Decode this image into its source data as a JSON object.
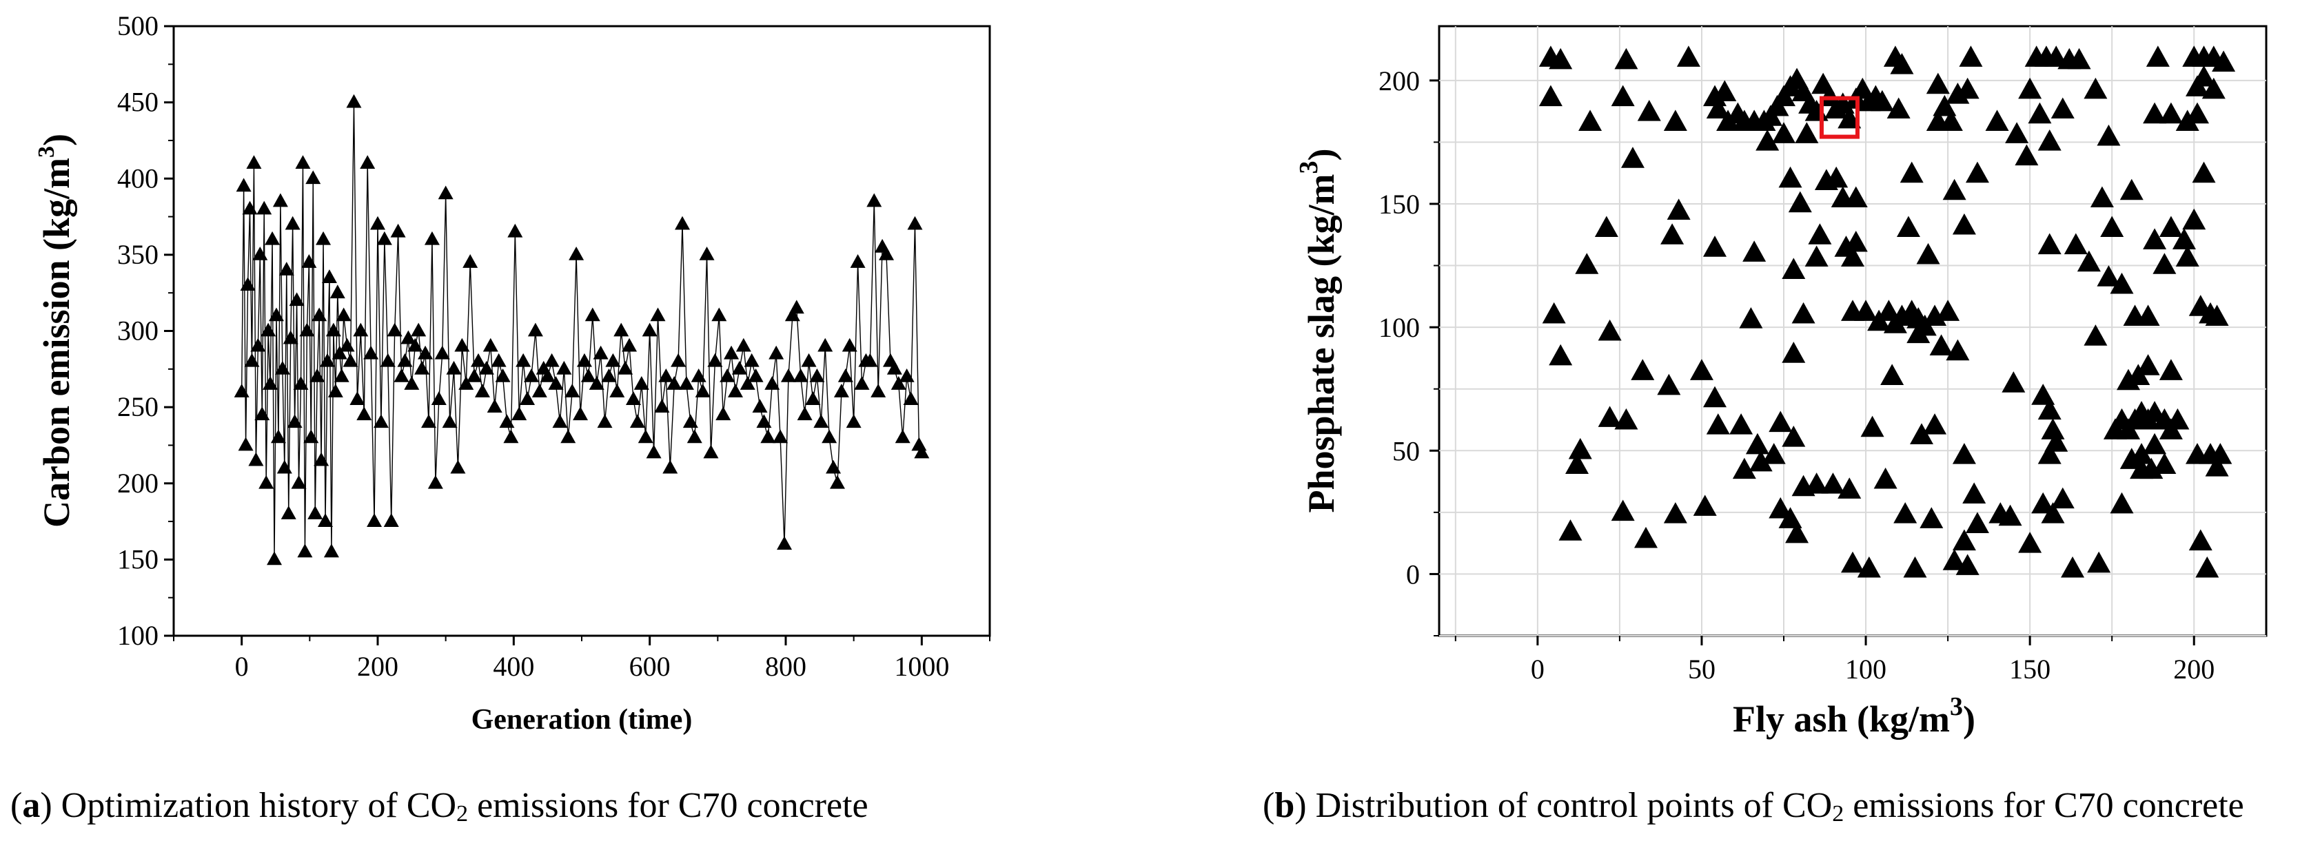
{
  "chart_data": [
    {
      "type": "line",
      "title": "",
      "xlabel": "Generation (time)",
      "ylabel": "Carbon emission (kg/m",
      "ylabel_sup": "3",
      "ylabel_end": ")",
      "xlim": [
        -100,
        1100
      ],
      "ylim": [
        100,
        500
      ],
      "xticks": [
        0,
        200,
        400,
        600,
        800,
        1000
      ],
      "yticks": [
        100,
        150,
        200,
        250,
        300,
        350,
        400,
        450,
        500
      ],
      "marker": "triangle",
      "x": [
        0,
        3,
        6,
        9,
        12,
        15,
        18,
        21,
        24,
        27,
        30,
        33,
        36,
        39,
        42,
        45,
        48,
        51,
        54,
        57,
        60,
        63,
        66,
        69,
        72,
        75,
        78,
        81,
        84,
        87,
        90,
        93,
        96,
        99,
        102,
        105,
        108,
        111,
        114,
        117,
        120,
        123,
        126,
        129,
        132,
        135,
        138,
        141,
        144,
        147,
        150,
        155,
        160,
        165,
        170,
        175,
        180,
        185,
        190,
        195,
        200,
        205,
        210,
        215,
        220,
        225,
        230,
        235,
        240,
        245,
        250,
        255,
        260,
        265,
        270,
        275,
        280,
        285,
        290,
        295,
        300,
        306,
        312,
        318,
        324,
        330,
        336,
        342,
        348,
        354,
        360,
        366,
        372,
        378,
        384,
        390,
        396,
        402,
        408,
        414,
        420,
        426,
        432,
        438,
        444,
        450,
        456,
        462,
        468,
        474,
        480,
        486,
        492,
        498,
        504,
        510,
        516,
        522,
        528,
        534,
        540,
        546,
        552,
        558,
        564,
        570,
        576,
        582,
        588,
        594,
        600,
        606,
        612,
        618,
        624,
        630,
        636,
        642,
        648,
        654,
        660,
        666,
        672,
        678,
        684,
        690,
        696,
        702,
        708,
        714,
        720,
        726,
        732,
        738,
        744,
        750,
        756,
        762,
        768,
        774,
        780,
        786,
        792,
        798,
        804,
        810,
        816,
        822,
        828,
        834,
        840,
        846,
        852,
        858,
        864,
        870,
        876,
        882,
        888,
        894,
        900,
        906,
        912,
        918,
        924,
        930,
        936,
        942,
        948,
        954,
        960,
        966,
        972,
        978,
        984,
        990,
        996,
        1000
      ],
      "values": [
        260,
        395,
        225,
        330,
        380,
        280,
        410,
        215,
        290,
        350,
        245,
        380,
        200,
        300,
        265,
        360,
        150,
        310,
        230,
        385,
        275,
        210,
        340,
        180,
        295,
        370,
        240,
        320,
        200,
        265,
        410,
        155,
        300,
        345,
        230,
        400,
        180,
        270,
        310,
        215,
        360,
        175,
        280,
        335,
        155,
        300,
        260,
        325,
        285,
        270,
        310,
        290,
        280,
        450,
        255,
        300,
        245,
        410,
        285,
        175,
        370,
        240,
        360,
        280,
        175,
        300,
        365,
        270,
        280,
        295,
        265,
        290,
        300,
        275,
        285,
        240,
        360,
        200,
        255,
        285,
        390,
        240,
        275,
        210,
        290,
        265,
        345,
        270,
        280,
        260,
        275,
        290,
        250,
        280,
        270,
        240,
        230,
        365,
        245,
        280,
        255,
        270,
        300,
        260,
        275,
        270,
        280,
        265,
        240,
        275,
        230,
        260,
        350,
        245,
        280,
        270,
        310,
        265,
        285,
        240,
        270,
        280,
        260,
        300,
        275,
        290,
        255,
        240,
        265,
        230,
        300,
        220,
        310,
        250,
        270,
        210,
        265,
        280,
        370,
        265,
        240,
        230,
        270,
        260,
        350,
        220,
        280,
        310,
        245,
        270,
        285,
        260,
        275,
        290,
        265,
        280,
        270,
        250,
        240,
        230,
        265,
        285,
        230,
        160,
        270,
        310,
        315,
        270,
        245,
        280,
        255,
        270,
        240,
        290,
        230,
        210,
        200,
        260,
        270,
        290,
        240,
        345,
        265,
        280,
        280,
        385,
        260,
        355,
        350,
        280,
        275,
        265,
        230,
        270,
        255,
        370,
        225,
        220
      ]
    },
    {
      "type": "scatter",
      "title": "",
      "xlabel": "Fly ash (kg/m",
      "xlabel_sup": "3",
      "xlabel_end": ")",
      "ylabel": "Phosphate slag (kg/m",
      "ylabel_sup": "3",
      "ylabel_end": ")",
      "xlim": [
        -30,
        222
      ],
      "ylim": [
        -25,
        222
      ],
      "xticks": [
        0,
        50,
        100,
        150,
        200
      ],
      "yticks": [
        0,
        50,
        100,
        150,
        200
      ],
      "grid": true,
      "marker": "triangle",
      "highlight": {
        "x": 92,
        "y": 185,
        "color": "#e8151b"
      },
      "points": [
        [
          4,
          209
        ],
        [
          7,
          208
        ],
        [
          27,
          208
        ],
        [
          46,
          209
        ],
        [
          4,
          193
        ],
        [
          26,
          193
        ],
        [
          16,
          183
        ],
        [
          34,
          187
        ],
        [
          42,
          183
        ],
        [
          29,
          168
        ],
        [
          54,
          193
        ],
        [
          55,
          188
        ],
        [
          57,
          195
        ],
        [
          58,
          183
        ],
        [
          61,
          186
        ],
        [
          63,
          183
        ],
        [
          66,
          183
        ],
        [
          69,
          183
        ],
        [
          71,
          185
        ],
        [
          73,
          189
        ],
        [
          75,
          193
        ],
        [
          77,
          197
        ],
        [
          79,
          200
        ],
        [
          81,
          195
        ],
        [
          83,
          190
        ],
        [
          85,
          187
        ],
        [
          87,
          198
        ],
        [
          89,
          193
        ],
        [
          91,
          188
        ],
        [
          93,
          190
        ],
        [
          95,
          184
        ],
        [
          97,
          192
        ],
        [
          99,
          196
        ],
        [
          101,
          191
        ],
        [
          103,
          193
        ],
        [
          105,
          191
        ],
        [
          109,
          209
        ],
        [
          111,
          206
        ],
        [
          132,
          209
        ],
        [
          152,
          209
        ],
        [
          155,
          209
        ],
        [
          158,
          209
        ],
        [
          162,
          208
        ],
        [
          165,
          208
        ],
        [
          200,
          209
        ],
        [
          203,
          209
        ],
        [
          206,
          209
        ],
        [
          209,
          207
        ],
        [
          189,
          209
        ],
        [
          170,
          196
        ],
        [
          128,
          194
        ],
        [
          124,
          189
        ],
        [
          122,
          198
        ],
        [
          131,
          196
        ],
        [
          150,
          196
        ],
        [
          153,
          186
        ],
        [
          188,
          186
        ],
        [
          193,
          186
        ],
        [
          198,
          183
        ],
        [
          201,
          197
        ],
        [
          203,
          201
        ],
        [
          206,
          196
        ],
        [
          110,
          188
        ],
        [
          122,
          183
        ],
        [
          126,
          183
        ],
        [
          140,
          183
        ],
        [
          146,
          178
        ],
        [
          149,
          169
        ],
        [
          156,
          175
        ],
        [
          160,
          188
        ],
        [
          174,
          177
        ],
        [
          75,
          178
        ],
        [
          82,
          178
        ],
        [
          70,
          175
        ],
        [
          77,
          160
        ],
        [
          88,
          159
        ],
        [
          91,
          160
        ],
        [
          93,
          152
        ],
        [
          80,
          150
        ],
        [
          97,
          152
        ],
        [
          114,
          162
        ],
        [
          134,
          162
        ],
        [
          127,
          155
        ],
        [
          156,
          133
        ],
        [
          164,
          133
        ],
        [
          168,
          126
        ],
        [
          172,
          152
        ],
        [
          175,
          140
        ],
        [
          181,
          155
        ],
        [
          188,
          135
        ],
        [
          193,
          140
        ],
        [
          197,
          135
        ],
        [
          200,
          143
        ],
        [
          198,
          128
        ],
        [
          191,
          125
        ],
        [
          174,
          120
        ],
        [
          178,
          117
        ],
        [
          203,
          162
        ],
        [
          201,
          186
        ],
        [
          21,
          140
        ],
        [
          15,
          125
        ],
        [
          41,
          137
        ],
        [
          43,
          147
        ],
        [
          54,
          132
        ],
        [
          66,
          130
        ],
        [
          78,
          123
        ],
        [
          86,
          137
        ],
        [
          85,
          128
        ],
        [
          94,
          132
        ],
        [
          96,
          128
        ],
        [
          97,
          134
        ],
        [
          113,
          140
        ],
        [
          119,
          129
        ],
        [
          130,
          141
        ],
        [
          5,
          105
        ],
        [
          7,
          88
        ],
        [
          22,
          98
        ],
        [
          65,
          103
        ],
        [
          81,
          105
        ],
        [
          96,
          106
        ],
        [
          100,
          106
        ],
        [
          104,
          102
        ],
        [
          107,
          106
        ],
        [
          109,
          101
        ],
        [
          111,
          104
        ],
        [
          114,
          106
        ],
        [
          116,
          103
        ],
        [
          118,
          100
        ],
        [
          121,
          104
        ],
        [
          125,
          106
        ],
        [
          116,
          97
        ],
        [
          123,
          92
        ],
        [
          128,
          90
        ],
        [
          108,
          80
        ],
        [
          145,
          77
        ],
        [
          78,
          89
        ],
        [
          170,
          96
        ],
        [
          182,
          104
        ],
        [
          186,
          104
        ],
        [
          202,
          108
        ],
        [
          205,
          105
        ],
        [
          207,
          104
        ],
        [
          50,
          82
        ],
        [
          54,
          71
        ],
        [
          55,
          60
        ],
        [
          62,
          60
        ],
        [
          67,
          52
        ],
        [
          72,
          48
        ],
        [
          74,
          61
        ],
        [
          78,
          55
        ],
        [
          32,
          82
        ],
        [
          40,
          76
        ],
        [
          22,
          63
        ],
        [
          27,
          62
        ],
        [
          13,
          50
        ],
        [
          12,
          44
        ],
        [
          10,
          17
        ],
        [
          33,
          14
        ],
        [
          26,
          25
        ],
        [
          42,
          24
        ],
        [
          51,
          27
        ],
        [
          63,
          42
        ],
        [
          68,
          45
        ],
        [
          74,
          26
        ],
        [
          79,
          16
        ],
        [
          77,
          22
        ],
        [
          81,
          35
        ],
        [
          85,
          36
        ],
        [
          90,
          36
        ],
        [
          95,
          34
        ],
        [
          102,
          59
        ],
        [
          106,
          38
        ],
        [
          117,
          56
        ],
        [
          121,
          60
        ],
        [
          130,
          48
        ],
        [
          133,
          32
        ],
        [
          134,
          20
        ],
        [
          141,
          24
        ],
        [
          144,
          23
        ],
        [
          120,
          22
        ],
        [
          115,
          2
        ],
        [
          131,
          3
        ],
        [
          130,
          13
        ],
        [
          127,
          5
        ],
        [
          96,
          4
        ],
        [
          101,
          2
        ],
        [
          112,
          24
        ],
        [
          150,
          12
        ],
        [
          154,
          72
        ],
        [
          156,
          66
        ],
        [
          157,
          58
        ],
        [
          158,
          53
        ],
        [
          156,
          48
        ],
        [
          154,
          28
        ],
        [
          157,
          24
        ],
        [
          160,
          30
        ],
        [
          163,
          2
        ],
        [
          171,
          4
        ],
        [
          178,
          28
        ],
        [
          176,
          58
        ],
        [
          178,
          62
        ],
        [
          180,
          58
        ],
        [
          182,
          62
        ],
        [
          184,
          65
        ],
        [
          186,
          62
        ],
        [
          188,
          65
        ],
        [
          191,
          62
        ],
        [
          193,
          58
        ],
        [
          195,
          62
        ],
        [
          188,
          52
        ],
        [
          184,
          48
        ],
        [
          181,
          46
        ],
        [
          184,
          42
        ],
        [
          187,
          42
        ],
        [
          191,
          44
        ],
        [
          180,
          78
        ],
        [
          183,
          80
        ],
        [
          186,
          84
        ],
        [
          193,
          82
        ],
        [
          201,
          48
        ],
        [
          205,
          48
        ],
        [
          208,
          48
        ],
        [
          207,
          43
        ],
        [
          202,
          13
        ],
        [
          204,
          2
        ]
      ]
    }
  ],
  "captions": {
    "a_letter": "a",
    "a_pre": "Optimization history of CO",
    "a_sub": "2",
    "a_post": " emissions for C70 concrete",
    "b_letter": "b",
    "b_pre": "Distribution of control points of CO",
    "b_sub": "2",
    "b_post": " emissions for C70 concrete"
  }
}
